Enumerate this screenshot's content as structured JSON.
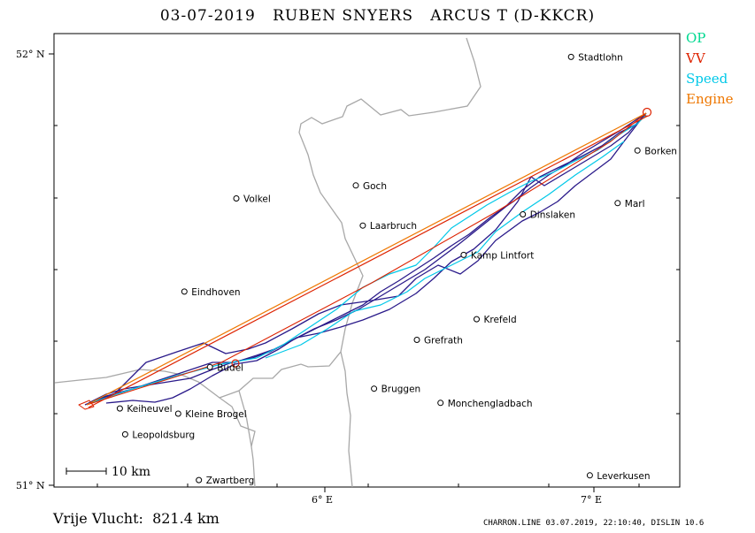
{
  "title": "03-07-2019   RUBEN SNYERS   ARCUS T (D-KKCR)",
  "legend": [
    {
      "label": "OP",
      "color": "#00d890"
    },
    {
      "label": "VV",
      "color": "#dd2200"
    },
    {
      "label": "Speed",
      "color": "#00c8e8"
    },
    {
      "label": "Engine",
      "color": "#ee7700"
    }
  ],
  "axes": {
    "lat_top": "52° N",
    "lat_bottom": "51° N",
    "lon_6": "6° E",
    "lon_7": "7° E"
  },
  "scale_bar": "10 km",
  "towns": [
    {
      "name": "Stadtlohn",
      "lon": 6.915,
      "lat": 51.993
    },
    {
      "name": "Borken",
      "lon": 7.162,
      "lat": 51.776
    },
    {
      "name": "Goch",
      "lon": 6.115,
      "lat": 51.695
    },
    {
      "name": "Volkel",
      "lon": 5.671,
      "lat": 51.665
    },
    {
      "name": "Marl",
      "lon": 7.088,
      "lat": 51.654
    },
    {
      "name": "Laarbruch",
      "lon": 6.141,
      "lat": 51.602
    },
    {
      "name": "Dinslaken",
      "lon": 6.736,
      "lat": 51.628
    },
    {
      "name": "Kamp Lintfort",
      "lon": 6.516,
      "lat": 51.534
    },
    {
      "name": "Eindhoven",
      "lon": 5.478,
      "lat": 51.449
    },
    {
      "name": "Krefeld",
      "lon": 6.564,
      "lat": 51.385
    },
    {
      "name": "Grefrath",
      "lon": 6.342,
      "lat": 51.337
    },
    {
      "name": "Budel",
      "lon": 5.573,
      "lat": 51.274
    },
    {
      "name": "Monchengladbach",
      "lon": 6.43,
      "lat": 51.191
    },
    {
      "name": "Bruggen",
      "lon": 6.183,
      "lat": 51.224
    },
    {
      "name": "Keiheuvel",
      "lon": 5.238,
      "lat": 51.178
    },
    {
      "name": "Kleine Brogel",
      "lon": 5.455,
      "lat": 51.166
    },
    {
      "name": "Leopoldsburg",
      "lon": 5.258,
      "lat": 51.118
    },
    {
      "name": "Zwartberg",
      "lon": 5.532,
      "lat": 51.012
    },
    {
      "name": "Leverkusen",
      "lon": 6.985,
      "lat": 51.023
    }
  ],
  "footer_left": "Vrije Vlucht:  821.4 km",
  "footer_right": "CHARRON.LINE 03.07.2019, 22:10:40, DISLIN 10.6"
}
